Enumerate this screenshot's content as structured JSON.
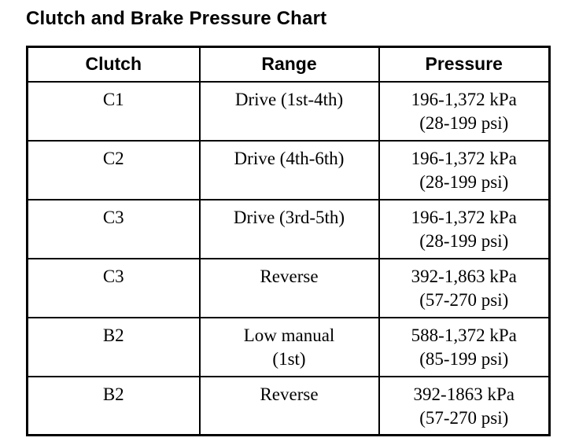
{
  "page": {
    "title": "Clutch and Brake Pressure Chart"
  },
  "table": {
    "columns": [
      "Clutch",
      "Range",
      "Pressure"
    ],
    "rows": [
      {
        "clutch": "C1",
        "range_line1": "Drive (1st-4th)",
        "pressure_kpa": "196-1,372 kPa",
        "pressure_psi": "(28-199 psi)"
      },
      {
        "clutch": "C2",
        "range_line1": "Drive (4th-6th)",
        "pressure_kpa": "196-1,372 kPa",
        "pressure_psi": "(28-199 psi)"
      },
      {
        "clutch": "C3",
        "range_line1": "Drive (3rd-5th)",
        "pressure_kpa": "196-1,372 kPa",
        "pressure_psi": "(28-199 psi)"
      },
      {
        "clutch": "C3",
        "range_line1": "Reverse",
        "pressure_kpa": "392-1,863 kPa",
        "pressure_psi": "(57-270 psi)"
      },
      {
        "clutch": "B2",
        "range_line1": "Low manual",
        "range_line2": "(1st)",
        "pressure_kpa": "588-1,372 kPa",
        "pressure_psi": "(85-199 psi)"
      },
      {
        "clutch": "B2",
        "range_line1": "Reverse",
        "pressure_kpa": "392-1863 kPa",
        "pressure_psi": "(57-270 psi)"
      }
    ]
  },
  "colors": {
    "background": "#ffffff",
    "text": "#000000",
    "border": "#000000"
  },
  "chart_data": {
    "type": "table",
    "title": "Clutch and Brake Pressure Chart",
    "columns": [
      "Clutch",
      "Range",
      "Pressure"
    ],
    "rows": [
      [
        "C1",
        "Drive (1st-4th)",
        "196-1,372 kPa (28-199 psi)"
      ],
      [
        "C2",
        "Drive (4th-6th)",
        "196-1,372 kPa (28-199 psi)"
      ],
      [
        "C3",
        "Drive (3rd-5th)",
        "196-1,372 kPa (28-199 psi)"
      ],
      [
        "C3",
        "Reverse",
        "392-1,863 kPa (57-270 psi)"
      ],
      [
        "B2",
        "Low manual (1st)",
        "588-1,372 kPa (85-199 psi)"
      ],
      [
        "B2",
        "Reverse",
        "392-1863 kPa (57-270 psi)"
      ]
    ]
  }
}
